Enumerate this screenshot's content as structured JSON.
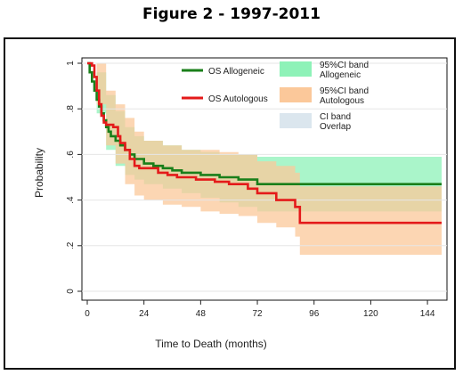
{
  "figure": {
    "title": "Figure 2 - 1997-2011"
  },
  "chart_data": {
    "type": "line",
    "title": "",
    "xlabel": "Time to Death (months)",
    "ylabel": "Probability",
    "xlim": [
      0,
      150
    ],
    "ylim": [
      0,
      1
    ],
    "x_ticks": [
      0,
      24,
      48,
      72,
      96,
      120,
      144
    ],
    "y_ticks": [
      0,
      0.2,
      0.4,
      0.6,
      0.8,
      1
    ],
    "y_tick_labels": [
      "0",
      ".2",
      ".4",
      ".6",
      ".8",
      "1"
    ],
    "grid": true,
    "legend_position": "top-right",
    "legend": [
      {
        "label": "OS Allogeneic",
        "kind": "line",
        "color": "#1a7f1a"
      },
      {
        "label": "OS Autologous",
        "kind": "line",
        "color": "#e41a1a"
      },
      {
        "label": "95%CI band\nAllogeneic",
        "kind": "patch",
        "color": "#8ef2b8"
      },
      {
        "label": "95%CI band\nAutologous",
        "kind": "patch",
        "color": "#fbc89a"
      },
      {
        "label": "CI band\nOverlap",
        "kind": "patch",
        "color": "#dbe6ee"
      }
    ],
    "series": [
      {
        "name": "OS Allogeneic",
        "color": "#1a7f1a",
        "x": [
          0,
          1,
          2,
          3,
          4,
          5,
          6,
          7,
          8,
          9,
          10,
          12,
          14,
          16,
          18,
          20,
          24,
          28,
          32,
          36,
          40,
          48,
          56,
          64,
          72,
          150
        ],
        "y": [
          1.0,
          0.96,
          0.92,
          0.88,
          0.84,
          0.81,
          0.78,
          0.75,
          0.72,
          0.7,
          0.68,
          0.66,
          0.64,
          0.62,
          0.6,
          0.58,
          0.56,
          0.55,
          0.54,
          0.53,
          0.52,
          0.51,
          0.5,
          0.49,
          0.47,
          0.47
        ]
      },
      {
        "name": "OS Autologous",
        "color": "#e41a1a",
        "x": [
          0,
          2,
          3,
          4,
          5,
          6,
          7,
          8,
          11,
          13,
          14,
          16,
          18,
          20,
          22,
          30,
          34,
          38,
          46,
          54,
          60,
          68,
          72,
          80,
          88,
          90,
          150
        ],
        "y": [
          1.0,
          0.99,
          0.94,
          0.88,
          0.82,
          0.77,
          0.74,
          0.73,
          0.72,
          0.68,
          0.65,
          0.62,
          0.58,
          0.55,
          0.54,
          0.52,
          0.51,
          0.5,
          0.49,
          0.48,
          0.47,
          0.45,
          0.43,
          0.4,
          0.37,
          0.3,
          0.3
        ]
      }
    ],
    "ci_bands": [
      {
        "name": "95%CI band\nAllogeneic",
        "color": "#8ef2b8",
        "x": [
          0,
          4,
          8,
          12,
          16,
          20,
          24,
          32,
          40,
          48,
          56,
          64,
          72,
          150
        ],
        "upper": [
          1.0,
          0.96,
          0.86,
          0.79,
          0.72,
          0.68,
          0.66,
          0.64,
          0.62,
          0.61,
          0.6,
          0.6,
          0.59,
          0.59
        ],
        "lower": [
          1.0,
          0.78,
          0.62,
          0.55,
          0.51,
          0.49,
          0.47,
          0.45,
          0.43,
          0.41,
          0.39,
          0.37,
          0.35,
          0.35
        ]
      },
      {
        "name": "95%CI band\nAutologous",
        "color": "#fbc89a",
        "x": [
          0,
          4,
          8,
          12,
          16,
          20,
          24,
          32,
          40,
          48,
          56,
          64,
          72,
          80,
          88,
          90,
          150
        ],
        "upper": [
          1.0,
          1.0,
          0.88,
          0.82,
          0.76,
          0.7,
          0.66,
          0.64,
          0.62,
          0.62,
          0.61,
          0.6,
          0.57,
          0.55,
          0.52,
          0.46,
          0.46
        ],
        "lower": [
          1.0,
          0.82,
          0.64,
          0.56,
          0.47,
          0.42,
          0.4,
          0.38,
          0.37,
          0.35,
          0.34,
          0.33,
          0.3,
          0.28,
          0.24,
          0.16,
          0.16
        ]
      }
    ]
  }
}
